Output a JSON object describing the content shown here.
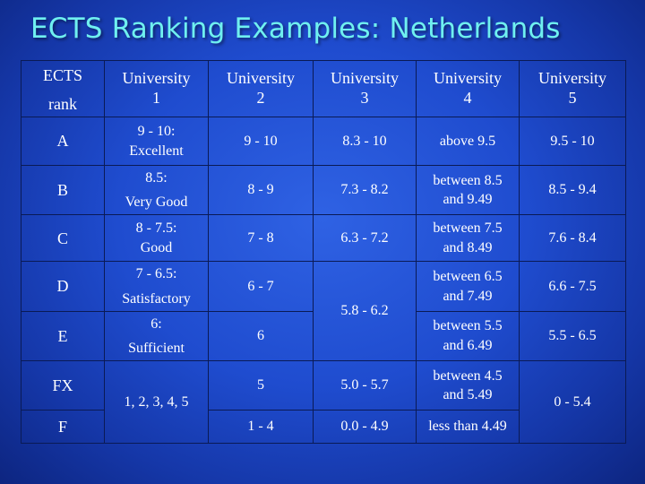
{
  "title": "ECTS Ranking Examples: Netherlands",
  "header": {
    "ects": "ECTS",
    "rank": "rank",
    "universities": [
      [
        "University",
        "1"
      ],
      [
        "University",
        "2"
      ],
      [
        "University",
        "3"
      ],
      [
        "University",
        "4"
      ],
      [
        "University",
        "5"
      ]
    ]
  },
  "rows": {
    "A": {
      "rank": "A",
      "u1": [
        "9 - 10:",
        "Excellent"
      ],
      "u2": "9 - 10",
      "u3": "8.3 - 10",
      "u4": "above 9.5",
      "u5": "9.5 - 10"
    },
    "B": {
      "rank": "B",
      "u1": [
        "8.5:",
        "Very Good"
      ],
      "u2": "8 - 9",
      "u3": "7.3 - 8.2",
      "u4": [
        "between 8.5",
        "and 9.49"
      ],
      "u5": "8.5 - 9.4"
    },
    "C": {
      "rank": "C",
      "u1": [
        "8 - 7.5:",
        "Good"
      ],
      "u2": "7 - 8",
      "u3": "6.3 - 7.2",
      "u4": [
        "between 7.5",
        "and 8.49"
      ],
      "u5": "7.6 - 8.4"
    },
    "D": {
      "rank": "D",
      "u1": [
        "7 - 6.5:",
        "Satisfactory"
      ],
      "u2": "6 - 7",
      "u4": [
        "between 6.5",
        "and 7.49"
      ],
      "u5": "6.6 - 7.5"
    },
    "DE_u3": "5.8 - 6.2",
    "E": {
      "rank": "E",
      "u1": [
        "6:",
        "Sufficient"
      ],
      "u2": "6",
      "u4": [
        "between 5.5",
        "and 6.49"
      ],
      "u5": "5.5 - 6.5"
    },
    "FX": {
      "rank": "FX",
      "u2": "5",
      "u3": "5.0 - 5.7",
      "u4": [
        "between 4.5",
        "and 5.49"
      ]
    },
    "FXF_u1": "1, 2, 3, 4, 5",
    "FXF_u5": "0 - 5.4",
    "F": {
      "rank": "F",
      "u2": "1 - 4",
      "u3": "0.0 - 4.9",
      "u4": "less than 4.49"
    }
  }
}
